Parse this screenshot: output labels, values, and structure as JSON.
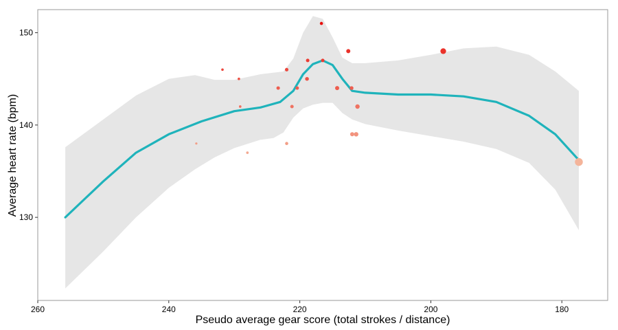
{
  "chart_data": {
    "type": "scatter",
    "title": "",
    "xlabel": "Pseudo average gear score (total strokes / distance)",
    "ylabel": "Average heart rate (bpm)",
    "x_reversed": true,
    "xlim": [
      260,
      173
    ],
    "ylim": [
      121,
      152.5
    ],
    "x_ticks": [
      260,
      240,
      220,
      200,
      180
    ],
    "y_ticks": [
      130,
      140,
      150
    ],
    "grid": false,
    "legend": "none",
    "colors": {
      "panel_border": "#9a9a9a",
      "band": "#e6e6e6",
      "smooth_line": "#1fb3bb",
      "point_high": "#e8110e",
      "point_low": "#f4b49a"
    },
    "points": [
      {
        "x": 216.7,
        "y": 151,
        "size": 2.0
      },
      {
        "x": 212.6,
        "y": 148,
        "size": 2.6
      },
      {
        "x": 198.1,
        "y": 148,
        "size": 3.6
      },
      {
        "x": 218.8,
        "y": 147,
        "size": 2.2
      },
      {
        "x": 216.5,
        "y": 147,
        "size": 2.2
      },
      {
        "x": 231.8,
        "y": 146,
        "size": 1.6
      },
      {
        "x": 222.0,
        "y": 146,
        "size": 2.2
      },
      {
        "x": 229.3,
        "y": 145,
        "size": 1.6
      },
      {
        "x": 218.9,
        "y": 145,
        "size": 2.4
      },
      {
        "x": 223.3,
        "y": 144,
        "size": 2.2
      },
      {
        "x": 220.4,
        "y": 144,
        "size": 2.2
      },
      {
        "x": 214.3,
        "y": 144,
        "size": 2.6
      },
      {
        "x": 212.1,
        "y": 144,
        "size": 2.4
      },
      {
        "x": 229.1,
        "y": 142,
        "size": 1.6
      },
      {
        "x": 221.2,
        "y": 142,
        "size": 2.2
      },
      {
        "x": 211.2,
        "y": 142,
        "size": 2.8
      },
      {
        "x": 212.0,
        "y": 139,
        "size": 2.6
      },
      {
        "x": 211.4,
        "y": 139,
        "size": 2.8
      },
      {
        "x": 235.8,
        "y": 138,
        "size": 1.4
      },
      {
        "x": 222.0,
        "y": 138,
        "size": 2.0
      },
      {
        "x": 228.0,
        "y": 137,
        "size": 1.6
      },
      {
        "x": 177.4,
        "y": 136,
        "size": 5.0
      }
    ],
    "smooth": {
      "x": [
        255.8,
        250,
        245,
        240,
        235,
        230,
        226,
        223,
        221,
        219.5,
        218,
        216.5,
        215,
        213.5,
        212,
        210,
        205,
        200,
        195,
        190,
        185,
        181,
        177.4
      ],
      "y": [
        130,
        133.9,
        137.0,
        139.0,
        140.4,
        141.5,
        141.9,
        142.5,
        143.7,
        145.5,
        146.6,
        147.0,
        146.5,
        145.0,
        143.7,
        143.5,
        143.3,
        143.3,
        143.1,
        142.5,
        141.0,
        139.0,
        136.2
      ]
    },
    "band_upper": {
      "x": [
        255.8,
        250,
        245,
        240,
        236,
        233,
        230,
        226,
        222.5,
        221,
        219.5,
        218,
        216.5,
        215,
        213.5,
        212,
        210,
        205,
        200,
        195,
        190,
        185,
        181,
        177.4
      ],
      "y": [
        137.6,
        140.6,
        143.2,
        145.0,
        145.4,
        144.9,
        144.9,
        145.5,
        145.8,
        147.2,
        150.0,
        151.8,
        151.5,
        149.5,
        147.3,
        146.7,
        146.7,
        147.0,
        147.6,
        148.3,
        148.5,
        147.6,
        145.8,
        143.7
      ]
    },
    "band_lower": {
      "x": [
        255.8,
        250,
        245,
        240,
        236,
        233,
        230,
        226,
        224,
        222.5,
        221,
        219.5,
        218,
        216.5,
        215,
        213.5,
        212,
        210,
        205,
        200,
        195,
        190,
        185,
        181,
        177.4
      ],
      "y": [
        122.3,
        126.3,
        130.0,
        133.2,
        135.2,
        136.5,
        137.5,
        138.4,
        138.6,
        139.2,
        140.8,
        141.8,
        142.2,
        142.4,
        142.4,
        141.3,
        140.6,
        140.1,
        139.4,
        138.8,
        138.2,
        137.4,
        135.9,
        133.0,
        128.6
      ]
    }
  }
}
